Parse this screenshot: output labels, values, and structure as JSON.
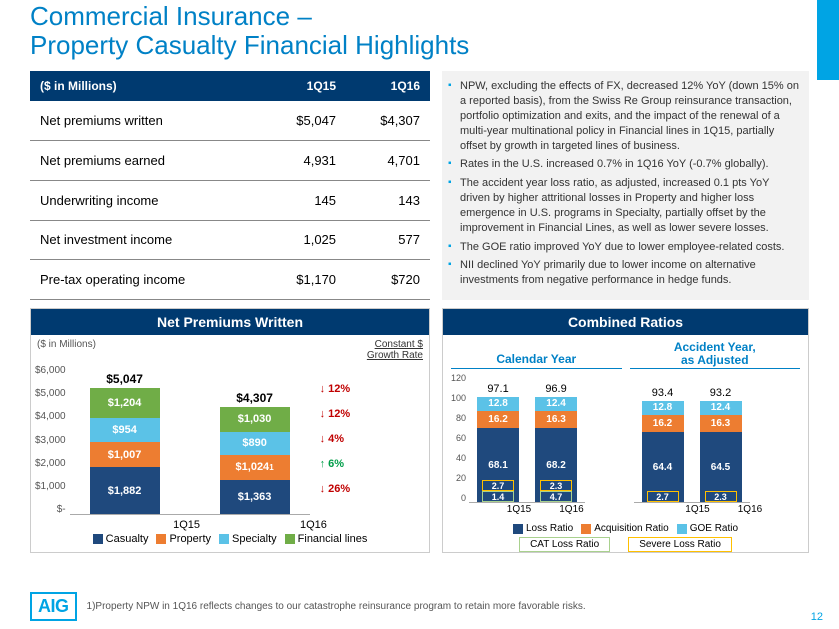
{
  "title_l1": "Commercial Insurance –",
  "title_l2": "Property Casualty Financial Highlights",
  "table": {
    "header_unit": "($ in Millions)",
    "col1": "1Q15",
    "col2": "1Q16",
    "rows": [
      {
        "label": "Net premiums written",
        "v1": "$5,047",
        "v2": "$4,307"
      },
      {
        "label": "Net premiums earned",
        "v1": "4,931",
        "v2": "4,701"
      },
      {
        "label": "Underwriting income",
        "v1": "145",
        "v2": "143"
      },
      {
        "label": "Net investment income",
        "v1": "1,025",
        "v2": "577"
      },
      {
        "label": "Pre-tax operating income",
        "v1": "$1,170",
        "v2": "$720"
      }
    ]
  },
  "bullets": [
    "NPW, excluding the effects of FX, decreased 12% YoY (down 15% on a reported basis), from the Swiss Re Group reinsurance transaction, portfolio optimization and exits, and the impact of the renewal of a multi-year multinational policy in Financial lines in 1Q15, partially offset by growth in targeted lines of business.",
    "Rates in the U.S. increased 0.7% in 1Q16 YoY (-0.7% globally).",
    "The accident year loss ratio, as adjusted, increased 0.1 pts YoY driven by higher attritional losses in Property and higher loss emergence in U.S. programs in Specialty, partially offset by the improvement in Financial Lines, as well as lower severe losses.",
    "The GOE ratio improved YoY due to lower employee-related costs.",
    "NII declined YoY primarily due to lower income on alternative investments from negative performance in hedge funds."
  ],
  "npw": {
    "title": "Net Premiums Written",
    "axis_label": "($ in Millions)",
    "growth_label_l1": "Constant $",
    "growth_label_l2": "Growth Rate",
    "yaxis": [
      "$6,000",
      "$5,000",
      "$4,000",
      "$3,000",
      "$2,000",
      "$1,000",
      "$-"
    ],
    "ymax": 6000,
    "colors": {
      "casualty": "#1f497d",
      "property": "#ed7d31",
      "specialty": "#5bc2e7",
      "financial": "#70ad47"
    },
    "bars": [
      {
        "period": "1Q15",
        "total": "$5,047",
        "segs": [
          {
            "k": "casualty",
            "v": 1882,
            "label": "$1,882"
          },
          {
            "k": "property",
            "v": 1007,
            "label": "$1,007"
          },
          {
            "k": "specialty",
            "v": 954,
            "label": "$954"
          },
          {
            "k": "financial",
            "v": 1204,
            "label": "$1,204"
          }
        ]
      },
      {
        "period": "1Q16",
        "total": "$4,307",
        "segs": [
          {
            "k": "casualty",
            "v": 1363,
            "label": "$1,363"
          },
          {
            "k": "property",
            "v": 1024,
            "label": "$1,024",
            "sup": "1"
          },
          {
            "k": "specialty",
            "v": 890,
            "label": "$890"
          },
          {
            "k": "financial",
            "v": 1030,
            "label": "$1,030"
          }
        ]
      }
    ],
    "growth": [
      {
        "dir": "dn",
        "text": "12%"
      },
      {
        "dir": "dn",
        "text": "12%"
      },
      {
        "dir": "dn",
        "text": "4%"
      },
      {
        "dir": "up",
        "text": "6%"
      },
      {
        "dir": "dn",
        "text": "26%"
      }
    ],
    "legend": [
      {
        "k": "casualty",
        "label": "Casualty"
      },
      {
        "k": "property",
        "label": "Property"
      },
      {
        "k": "specialty",
        "label": "Specialty"
      },
      {
        "k": "financial",
        "label": "Financial lines"
      }
    ]
  },
  "cr": {
    "title": "Combined Ratios",
    "yaxis": [
      "120",
      "100",
      "80",
      "60",
      "40",
      "20",
      "0"
    ],
    "ymax": 120,
    "colors": {
      "loss": "#1f497d",
      "acq": "#ed7d31",
      "goe": "#5bc2e7"
    },
    "half1": {
      "title": "Calendar Year",
      "bars": [
        {
          "period": "1Q15",
          "total": "97.1",
          "segs": [
            {
              "k": "loss",
              "v": 68.1,
              "label": "68.1"
            },
            {
              "k": "acq",
              "v": 16.2,
              "label": "16.2"
            },
            {
              "k": "goe",
              "v": 12.8,
              "label": "12.8"
            }
          ],
          "overlays": [
            {
              "v": 1.4,
              "off": 0,
              "col": "#a9d18e"
            },
            {
              "v": 2.7,
              "off": 1.4,
              "col": "#ffc000"
            }
          ]
        },
        {
          "period": "1Q16",
          "total": "96.9",
          "segs": [
            {
              "k": "loss",
              "v": 68.2,
              "label": "68.2"
            },
            {
              "k": "acq",
              "v": 16.3,
              "label": "16.3"
            },
            {
              "k": "goe",
              "v": 12.4,
              "label": "12.4"
            }
          ],
          "overlays": [
            {
              "v": 4.7,
              "off": 0,
              "col": "#a9d18e"
            },
            {
              "v": 2.3,
              "off": 4.7,
              "col": "#ffc000"
            }
          ]
        }
      ]
    },
    "half2": {
      "title_l1": "Accident Year,",
      "title_l2": "as Adjusted",
      "bars": [
        {
          "period": "1Q15",
          "total": "93.4",
          "segs": [
            {
              "k": "loss",
              "v": 64.4,
              "label": "64.4"
            },
            {
              "k": "acq",
              "v": 16.2,
              "label": "16.2"
            },
            {
              "k": "goe",
              "v": 12.8,
              "label": "12.8"
            }
          ],
          "overlays": [
            {
              "v": 2.7,
              "off": 0,
              "col": "#ffc000"
            }
          ]
        },
        {
          "period": "1Q16",
          "total": "93.2",
          "segs": [
            {
              "k": "loss",
              "v": 64.5,
              "label": "64.5"
            },
            {
              "k": "acq",
              "v": 16.3,
              "label": "16.3"
            },
            {
              "k": "goe",
              "v": 12.4,
              "label": "12.4"
            }
          ],
          "overlays": [
            {
              "v": 2.3,
              "off": 0,
              "col": "#ffc000"
            }
          ]
        }
      ]
    },
    "legend": [
      {
        "k": "loss",
        "label": "Loss Ratio"
      },
      {
        "k": "acq",
        "label": "Acquisition Ratio"
      },
      {
        "k": "goe",
        "label": "GOE Ratio"
      }
    ],
    "legend2": [
      {
        "color": "#a9d18e",
        "label": "CAT Loss Ratio"
      },
      {
        "color": "#ffc000",
        "label": "Severe Loss Ratio"
      }
    ]
  },
  "footnote": "1)Property NPW in 1Q16 reflects changes to our catastrophe reinsurance program to retain more favorable risks.",
  "logo_text": "AIG",
  "page_number": "12"
}
